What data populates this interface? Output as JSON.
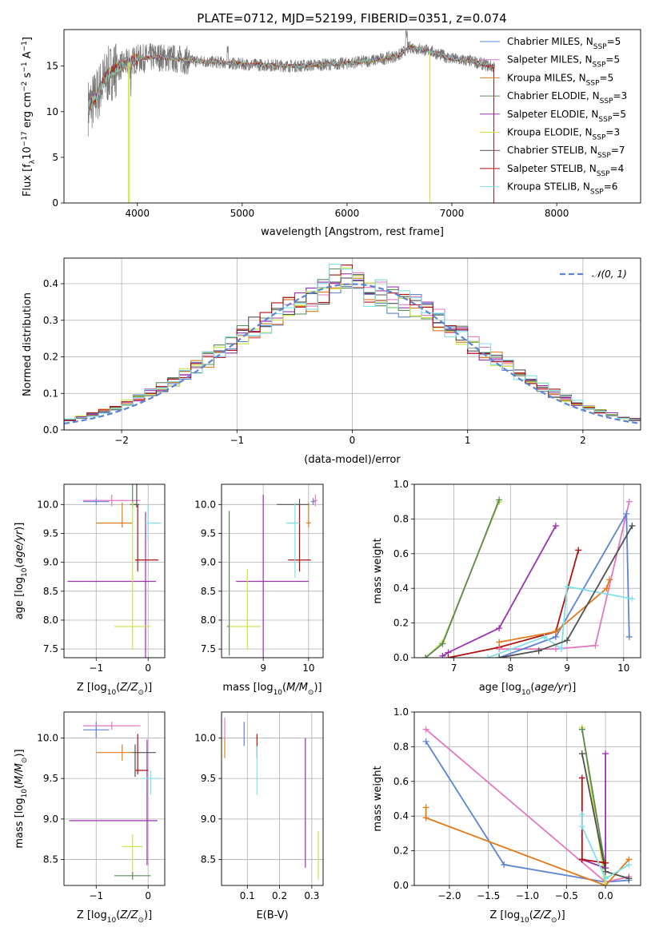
{
  "figure_title": "PLATE=0712, MJD=52199, FIBERID=0351, z=0.074",
  "colors": {
    "Chabrier MILES": "#5b84d6",
    "Salpeter MILES": "#e377c2",
    "Kroupa MILES": "#e07b18",
    "Chabrier ELODIE": "#5a8a5a",
    "Salpeter ELODIE": "#9b30b0",
    "Kroupa ELODIE": "#c8e640",
    "Chabrier STELIB": "#505050",
    "Salpeter STELIB": "#b01010",
    "Kroupa STELIB": "#80e0e8",
    "normal_curve": "#5b84d6",
    "data_spectrum": "#777777"
  },
  "chart_data": [
    {
      "id": "spectrum",
      "type": "line",
      "xlabel": "wavelength [Angstrom, rest frame]",
      "ylabel": "Flux [f_λ10^-17 erg cm^-2 s^-1 A^-1]",
      "xlim": [
        3300,
        8800
      ],
      "ylim": [
        0,
        19
      ],
      "xticks": [
        4000,
        5000,
        6000,
        7000,
        8000
      ],
      "yticks": [
        0,
        5,
        10,
        15
      ],
      "grid": false,
      "legend_position": "right",
      "legend": [
        {
          "model": "Chabrier MILES",
          "n_ssp": "5"
        },
        {
          "model": "Salpeter MILES",
          "n_ssp": "5"
        },
        {
          "model": "Kroupa MILES",
          "n_ssp": "5"
        },
        {
          "model": "Chabrier ELODIE",
          "n_ssp": "3"
        },
        {
          "model": "Salpeter ELODIE",
          "n_ssp": "5"
        },
        {
          "model": "Kroupa ELODIE",
          "n_ssp": "3"
        },
        {
          "model": "Chabrier STELIB",
          "n_ssp": "7"
        },
        {
          "model": "Salpeter STELIB",
          "n_ssp": "4"
        },
        {
          "model": "Kroupa STELIB",
          "n_ssp": "6"
        }
      ],
      "continuum": [
        [
          3530,
          10.5
        ],
        [
          3600,
          11.5
        ],
        [
          3700,
          13.8
        ],
        [
          3800,
          14.8
        ],
        [
          3900,
          15.3
        ],
        [
          4000,
          15.8
        ],
        [
          4200,
          16.0
        ],
        [
          4500,
          15.6
        ],
        [
          4800,
          15.4
        ],
        [
          5000,
          15.2
        ],
        [
          5500,
          15.0
        ],
        [
          6000,
          15.3
        ],
        [
          6300,
          15.7
        ],
        [
          6500,
          16.2
        ],
        [
          6600,
          17.1
        ],
        [
          6800,
          16.6
        ],
        [
          7000,
          15.8
        ],
        [
          7200,
          15.5
        ],
        [
          7400,
          14.9
        ]
      ],
      "spectrum_range": [
        3530,
        7410
      ]
    },
    {
      "id": "residuals",
      "type": "histogram",
      "xlabel": "(data-model)/error",
      "ylabel": "Normed distribution",
      "xlim": [
        -2.5,
        2.5
      ],
      "ylim": [
        0,
        0.47
      ],
      "xticks": [
        -2,
        -1,
        0,
        1,
        2
      ],
      "yticks": [
        0.0,
        0.1,
        0.2,
        0.3,
        0.4
      ],
      "grid": true,
      "bin_width": 0.1,
      "legend_position": "top-right",
      "reference_curve": "𝒩(0, 1)"
    },
    {
      "id": "age_vs_Z",
      "type": "errorbar",
      "xlabel": "Z [log10(Z/Z⊙)]",
      "ylabel": "age [log10(age/yr)]",
      "xlim": [
        -1.62,
        0.32
      ],
      "ylim": [
        7.35,
        10.35
      ],
      "xticks": [
        -1,
        0
      ],
      "yticks": [
        7.5,
        8.0,
        8.5,
        9.0,
        9.5,
        10.0
      ],
      "grid": true,
      "points": [
        {
          "model": "Chabrier MILES",
          "x": -1.0,
          "xerr": [
            0.25,
            0.25
          ],
          "y": 10.05,
          "yerr": [
            0.06,
            0.06
          ]
        },
        {
          "model": "Salpeter MILES",
          "x": -0.7,
          "xerr": [
            0.55,
            0.55
          ],
          "y": 10.07,
          "yerr": [
            0.1,
            0.1
          ]
        },
        {
          "model": "Kroupa MILES",
          "x": -0.5,
          "xerr": [
            0.5,
            0.2
          ],
          "y": 9.68,
          "yerr": [
            0.08,
            0.35
          ]
        },
        {
          "model": "Chabrier ELODIE",
          "x": -0.3,
          "xerr": [
            0.05,
            0.05
          ],
          "y": 10.0,
          "yerr": [
            0.05,
            2.5
          ]
        },
        {
          "model": "Salpeter ELODIE",
          "x": -0.05,
          "xerr": [
            1.5,
            0.2
          ],
          "y": 8.67,
          "yerr": [
            1.5,
            1.2
          ]
        },
        {
          "model": "Kroupa ELODIE",
          "x": -0.3,
          "xerr": [
            0.35,
            0.35
          ],
          "y": 7.89,
          "yerr": [
            0.4,
            2.15
          ]
        },
        {
          "model": "Chabrier STELIB",
          "x": -0.22,
          "xerr": [
            0.05,
            0.05
          ],
          "y": 10.0,
          "yerr": [
            0.05,
            1.05
          ]
        },
        {
          "model": "Salpeter STELIB",
          "x": -0.2,
          "xerr": [
            0.05,
            0.4
          ],
          "y": 9.04,
          "yerr": [
            0.2,
            0.95
          ]
        },
        {
          "model": "Kroupa STELIB",
          "x": 0.0,
          "xerr": [
            0.05,
            0.25
          ],
          "y": 9.68,
          "yerr": [
            0.3,
            0.3
          ]
        }
      ]
    },
    {
      "id": "age_vs_mass",
      "type": "errorbar",
      "xlabel": "mass [log10(M/M⊙)]",
      "ylabel": "",
      "xlim": [
        8.08,
        10.32
      ],
      "ylim": [
        7.35,
        10.35
      ],
      "xticks": [
        9,
        10
      ],
      "yticks": [
        7.5,
        8.0,
        8.5,
        9.0,
        9.5,
        10.0
      ],
      "grid": true,
      "points": [
        {
          "model": "Chabrier MILES",
          "x": 10.1,
          "xerr": [
            0.05,
            0.05
          ],
          "y": 10.05,
          "yerr": [
            0.06,
            0.06
          ]
        },
        {
          "model": "Salpeter MILES",
          "x": 10.15,
          "xerr": [
            0.05,
            0.05
          ],
          "y": 10.07,
          "yerr": [
            0.1,
            0.1
          ]
        },
        {
          "model": "Kroupa MILES",
          "x": 10.0,
          "xerr": [
            0.05,
            0.05
          ],
          "y": 9.68,
          "yerr": [
            0.08,
            0.35
          ]
        },
        {
          "model": "Chabrier ELODIE",
          "x": 8.25,
          "xerr": [
            0.05,
            0.05
          ],
          "y": 7.89,
          "yerr": [
            0.5,
            2.0
          ]
        },
        {
          "model": "Salpeter ELODIE",
          "x": 9.0,
          "xerr": [
            0.6,
            1.0
          ],
          "y": 8.67,
          "yerr": [
            1.5,
            1.5
          ]
        },
        {
          "model": "Kroupa ELODIE",
          "x": 8.65,
          "xerr": [
            0.4,
            0.3
          ],
          "y": 7.89,
          "yerr": [
            0.4,
            1.0
          ]
        },
        {
          "model": "Chabrier STELIB",
          "x": 9.8,
          "xerr": [
            0.5,
            0.2
          ],
          "y": 10.0,
          "yerr": [
            1.15,
            0.1
          ]
        },
        {
          "model": "Salpeter STELIB",
          "x": 9.8,
          "xerr": [
            0.25,
            0.25
          ],
          "y": 9.04,
          "yerr": [
            0.2,
            0.95
          ]
        },
        {
          "model": "Kroupa STELIB",
          "x": 9.7,
          "xerr": [
            0.2,
            0.1
          ],
          "y": 9.68,
          "yerr": [
            0.95,
            0.35
          ]
        }
      ]
    },
    {
      "id": "weight_vs_age",
      "type": "line",
      "xlabel": "age [log10(age/yr)]",
      "ylabel": "mass weight",
      "xlim": [
        6.3,
        10.3
      ],
      "ylim": [
        0,
        1
      ],
      "xticks": [
        7,
        8,
        9,
        10
      ],
      "yticks": [
        0.0,
        0.2,
        0.4,
        0.6,
        0.8,
        1.0
      ],
      "grid": true,
      "series": [
        {
          "model": "Kroupa ELODIE",
          "points": [
            [
              6.5,
              0.0
            ],
            [
              6.8,
              0.09
            ],
            [
              7.8,
              0.9
            ]
          ]
        },
        {
          "model": "Chabrier ELODIE",
          "points": [
            [
              6.5,
              0.0
            ],
            [
              6.8,
              0.08
            ],
            [
              7.8,
              0.91
            ]
          ]
        },
        {
          "model": "Salpeter ELODIE",
          "points": [
            [
              6.8,
              0.01
            ],
            [
              6.9,
              0.03
            ],
            [
              7.8,
              0.17
            ],
            [
              8.8,
              0.76
            ]
          ]
        },
        {
          "model": "Salpeter STELIB",
          "points": [
            [
              6.9,
              0.0
            ],
            [
              7.8,
              0.06
            ],
            [
              8.8,
              0.15
            ],
            [
              9.2,
              0.62
            ]
          ]
        },
        {
          "model": "Salpeter MILES",
          "points": [
            [
              7.8,
              0.05
            ],
            [
              8.8,
              0.05
            ],
            [
              9.5,
              0.07
            ],
            [
              10.1,
              0.9
            ]
          ]
        },
        {
          "model": "Chabrier MILES",
          "points": [
            [
              7.8,
              0.0
            ],
            [
              8.8,
              0.12
            ],
            [
              10.05,
              0.83
            ],
            [
              10.1,
              0.12
            ]
          ]
        },
        {
          "model": "Kroupa MILES",
          "points": [
            [
              7.8,
              0.09
            ],
            [
              8.8,
              0.15
            ],
            [
              9.7,
              0.4
            ],
            [
              9.75,
              0.45
            ]
          ]
        },
        {
          "model": "Kroupa STELIB",
          "points": [
            [
              7.6,
              0.0
            ],
            [
              8.6,
              0.12
            ],
            [
              8.9,
              0.05
            ],
            [
              9.0,
              0.41
            ],
            [
              10.15,
              0.34
            ]
          ]
        },
        {
          "model": "Chabrier STELIB",
          "points": [
            [
              7.8,
              0.0
            ],
            [
              8.5,
              0.04
            ],
            [
              9.0,
              0.1
            ],
            [
              10.15,
              0.76
            ]
          ]
        }
      ]
    },
    {
      "id": "mass_vs_Z",
      "type": "errorbar",
      "xlabel": "Z [log10(Z/Z⊙)]",
      "ylabel": "mass [log10(M/M⊙)]",
      "xlim": [
        -1.62,
        0.32
      ],
      "ylim": [
        8.18,
        10.32
      ],
      "xticks": [
        -1,
        0
      ],
      "yticks": [
        8.5,
        9.0,
        9.5,
        10.0
      ],
      "grid": true,
      "points": [
        {
          "model": "Chabrier MILES",
          "x": -1.0,
          "xerr": [
            0.25,
            0.25
          ],
          "y": 10.1,
          "yerr": [
            0.1,
            0.1
          ]
        },
        {
          "model": "Salpeter MILES",
          "x": -0.7,
          "xerr": [
            0.55,
            0.55
          ],
          "y": 10.15,
          "yerr": [
            0.05,
            0.05
          ]
        },
        {
          "model": "Kroupa MILES",
          "x": -0.5,
          "xerr": [
            0.5,
            0.2
          ],
          "y": 9.82,
          "yerr": [
            0.1,
            0.1
          ]
        },
        {
          "model": "Chabrier ELODIE",
          "x": -0.3,
          "xerr": [
            0.35,
            0.35
          ],
          "y": 8.3,
          "yerr": [
            0.05,
            0.05
          ]
        },
        {
          "model": "Salpeter ELODIE",
          "x": -0.02,
          "xerr": [
            1.5,
            0.2
          ],
          "y": 8.98,
          "yerr": [
            0.55,
            1.0
          ]
        },
        {
          "model": "Kroupa ELODIE",
          "x": -0.3,
          "xerr": [
            0.2,
            0.2
          ],
          "y": 8.66,
          "yerr": [
            0.3,
            0.15
          ]
        },
        {
          "model": "Chabrier STELIB",
          "x": -0.25,
          "xerr": [
            0.05,
            0.4
          ],
          "y": 9.82,
          "yerr": [
            0.3,
            0.1
          ]
        },
        {
          "model": "Salpeter STELIB",
          "x": -0.2,
          "xerr": [
            0.05,
            0.2
          ],
          "y": 9.6,
          "yerr": [
            0.05,
            0.45
          ]
        },
        {
          "model": "Kroupa STELIB",
          "x": 0.05,
          "xerr": [
            0.15,
            0.15
          ],
          "y": 9.5,
          "yerr": [
            0.2,
            0.1
          ]
        }
      ]
    },
    {
      "id": "mass_vs_ebv",
      "type": "errorbar",
      "xlabel": "E(B-V)",
      "ylabel": "",
      "xlim": [
        0.02,
        0.335
      ],
      "ylim": [
        8.18,
        10.32
      ],
      "xticks": [
        0.1,
        0.2,
        0.3
      ],
      "yticks": [
        8.5,
        9.0,
        9.5,
        10.0
      ],
      "grid": true,
      "points": [
        {
          "model": "Salpeter MILES",
          "x": 0.03,
          "xerr": [
            0.0,
            0.0
          ],
          "y": 10.1,
          "yerr": [
            0.1,
            0.15
          ]
        },
        {
          "model": "Kroupa MILES",
          "x": 0.03,
          "xerr": [
            0.0,
            0.0
          ],
          "y": 9.85,
          "yerr": [
            0.1,
            0.15
          ]
        },
        {
          "model": "Chabrier MILES",
          "x": 0.09,
          "xerr": [
            0.0,
            0.0
          ],
          "y": 10.05,
          "yerr": [
            0.15,
            0.15
          ]
        },
        {
          "model": "Salpeter STELIB",
          "x": 0.13,
          "xerr": [
            0.0,
            0.0
          ],
          "y": 9.9,
          "yerr": [
            0.15,
            0.15
          ]
        },
        {
          "model": "Kroupa STELIB",
          "x": 0.13,
          "xerr": [
            0.0,
            0.0
          ],
          "y": 9.6,
          "yerr": [
            0.3,
            0.3
          ]
        },
        {
          "model": "Salpeter ELODIE",
          "x": 0.28,
          "xerr": [
            0.0,
            0.0
          ],
          "y": 9.2,
          "yerr": [
            0.8,
            0.8
          ]
        },
        {
          "model": "Kroupa ELODIE",
          "x": 0.32,
          "xerr": [
            0.0,
            0.0
          ],
          "y": 8.55,
          "yerr": [
            0.3,
            0.3
          ]
        }
      ]
    },
    {
      "id": "weight_vs_Z",
      "type": "line",
      "xlabel": "Z [log10(Z/Z⊙)]",
      "ylabel": "mass weight",
      "xlim": [
        -2.45,
        0.45
      ],
      "ylim": [
        0,
        1
      ],
      "xticks": [
        -2.0,
        -1.5,
        -1.0,
        -0.5,
        0.0
      ],
      "yticks": [
        0.0,
        0.2,
        0.4,
        0.6,
        0.8,
        1.0
      ],
      "grid": true,
      "series": [
        {
          "model": "Chabrier MILES",
          "points": [
            [
              -2.3,
              0.83
            ],
            [
              -1.3,
              0.12
            ],
            [
              0.0,
              0.02
            ],
            [
              0.3,
              0.03
            ]
          ]
        },
        {
          "model": "Salpeter MILES",
          "points": [
            [
              -2.3,
              0.9
            ],
            [
              0.0,
              0.02
            ],
            [
              0.3,
              0.05
            ]
          ]
        },
        {
          "model": "Kroupa MILES",
          "points": [
            [
              -2.3,
              0.45
            ],
            [
              -2.3,
              0.39
            ],
            [
              0.0,
              0.0
            ],
            [
              0.3,
              0.15
            ]
          ]
        },
        {
          "model": "Kroupa ELODIE",
          "points": [
            [
              -0.3,
              0.91
            ],
            [
              0.0,
              0.0
            ],
            [
              0.0,
              0.05
            ]
          ]
        },
        {
          "model": "Chabrier ELODIE",
          "points": [
            [
              -0.3,
              0.9
            ],
            [
              0.0,
              0.1
            ]
          ]
        },
        {
          "model": "Salpeter ELODIE",
          "points": [
            [
              0.0,
              0.76
            ],
            [
              0.0,
              0.1
            ],
            [
              -0.3,
              0.15
            ]
          ]
        },
        {
          "model": "Chabrier STELIB",
          "points": [
            [
              -0.3,
              0.76
            ],
            [
              0.0,
              0.08
            ],
            [
              0.3,
              0.04
            ]
          ]
        },
        {
          "model": "Salpeter STELIB",
          "points": [
            [
              -0.3,
              0.62
            ],
            [
              -0.3,
              0.15
            ],
            [
              0.0,
              0.13
            ]
          ]
        },
        {
          "model": "Kroupa STELIB",
          "points": [
            [
              -0.3,
              0.41
            ],
            [
              -0.3,
              0.34
            ],
            [
              0.0,
              0.04
            ],
            [
              0.3,
              0.12
            ]
          ]
        }
      ]
    }
  ]
}
